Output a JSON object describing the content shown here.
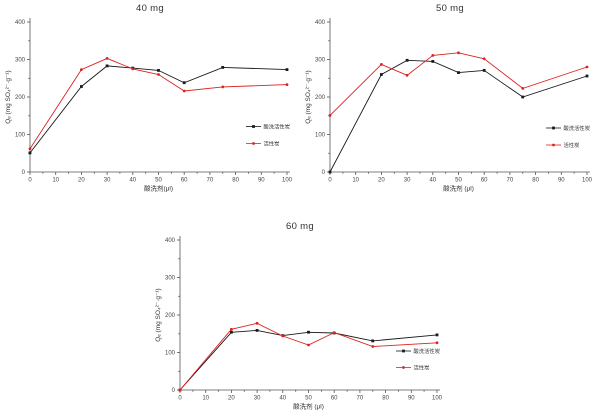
{
  "page": {
    "background": "#ffffff",
    "series_palette": {
      "acid_washed_carbon": "#1a1a1a",
      "plain_carbon": "#dd2222"
    }
  },
  "chart_data": [
    {
      "type": "line",
      "title": "40 mg",
      "xlabel": "酸洗剂(μl)",
      "ylabel": "Qₑ (mg SO₄²⁻·g⁻¹)",
      "xlim": [
        0,
        100
      ],
      "ylim": [
        0,
        400
      ],
      "xticks": [
        0,
        10,
        20,
        30,
        40,
        50,
        60,
        70,
        80,
        90,
        100
      ],
      "yticks": [
        0,
        100,
        200,
        300,
        400
      ],
      "x_minor_step": 5,
      "y_minor_step": 50,
      "grid": false,
      "legend_position": "right-center",
      "x": [
        0,
        20,
        30,
        40,
        50,
        60,
        75,
        100
      ],
      "series": [
        {
          "name": "酸洗活性炭",
          "color": "#1a1a1a",
          "marker": "square",
          "values": [
            51,
            228,
            283,
            277,
            271,
            238,
            279,
            273
          ]
        },
        {
          "name": "活性炭",
          "color": "#dd2222",
          "marker": "circle",
          "values": [
            62,
            273,
            303,
            275,
            260,
            216,
            227,
            233
          ]
        }
      ]
    },
    {
      "type": "line",
      "title": "50 mg",
      "xlabel": "酸洗剂 (μl)",
      "ylabel": "Qₑ (mg SO₄²⁻·g⁻¹)",
      "xlim": [
        0,
        100
      ],
      "ylim": [
        0,
        400
      ],
      "xticks": [
        0,
        10,
        20,
        30,
        40,
        50,
        60,
        70,
        80,
        90,
        100
      ],
      "yticks": [
        0,
        100,
        200,
        300,
        400
      ],
      "x_minor_step": 5,
      "y_minor_step": 50,
      "grid": false,
      "legend_position": "right-center",
      "x": [
        0,
        20,
        30,
        40,
        50,
        60,
        75,
        100
      ],
      "series": [
        {
          "name": "酸洗活性炭",
          "color": "#1a1a1a",
          "marker": "square",
          "values": [
            0,
            260,
            298,
            295,
            265,
            271,
            200,
            256
          ]
        },
        {
          "name": "活性炭",
          "color": "#dd2222",
          "marker": "circle",
          "values": [
            151,
            287,
            258,
            311,
            318,
            302,
            223,
            280
          ]
        }
      ]
    },
    {
      "type": "line",
      "title": "60 mg",
      "xlabel": "酸洗剂 (μl)",
      "ylabel": "Qₑ (mg SO₄²⁻·g⁻¹)",
      "xlim": [
        0,
        100
      ],
      "ylim": [
        0,
        400
      ],
      "xticks": [
        0,
        10,
        20,
        30,
        40,
        50,
        60,
        70,
        80,
        90,
        100
      ],
      "yticks": [
        0,
        100,
        200,
        300,
        400
      ],
      "x_minor_step": 5,
      "y_minor_step": 50,
      "grid": false,
      "legend_position": "right-center",
      "x": [
        0,
        20,
        30,
        40,
        50,
        60,
        75,
        100
      ],
      "series": [
        {
          "name": "酸洗活性炭",
          "color": "#1a1a1a",
          "marker": "square",
          "values": [
            0,
            154,
            159,
            145,
            154,
            152,
            131,
            147
          ]
        },
        {
          "name": "活性炭",
          "color": "#dd2222",
          "marker": "circle",
          "values": [
            0,
            162,
            178,
            144,
            120,
            153,
            116,
            126
          ]
        }
      ]
    }
  ]
}
